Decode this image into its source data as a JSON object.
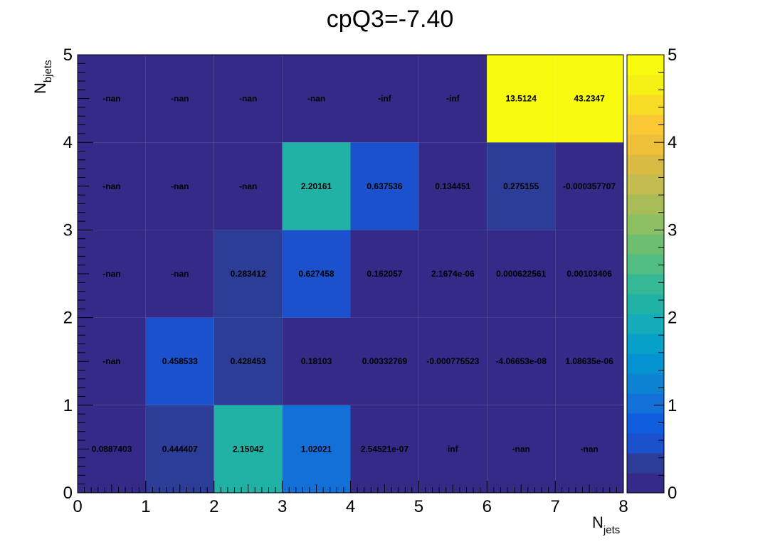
{
  "chart_data": {
    "type": "heatmap",
    "title": "cpQ3=-7.40",
    "xlabel": "N",
    "xlabel_sub": "jets",
    "ylabel": "N",
    "ylabel_sub": "bjets",
    "xlim": [
      0,
      8
    ],
    "ylim": [
      0,
      5
    ],
    "x_ticks": [
      "0",
      "1",
      "2",
      "3",
      "4",
      "5",
      "6",
      "7",
      "8"
    ],
    "y_ticks": [
      "0",
      "1",
      "2",
      "3",
      "4",
      "5"
    ],
    "colorbar_range": [
      0,
      5
    ],
    "colorbar_ticks": [
      "0",
      "1",
      "2",
      "3",
      "4",
      "5"
    ],
    "grid": false,
    "palette": [
      "#352a87",
      "#2c3d98",
      "#1b51cc",
      "#0f5cdd",
      "#1470d9",
      "#0d82d3",
      "#0592d1",
      "#07a1c8",
      "#14abba",
      "#21b2a6",
      "#34b896",
      "#51bd82",
      "#6ebe71",
      "#8dbf63",
      "#a8bd58",
      "#c3bb4f",
      "#d9ba42",
      "#eec039",
      "#fbc835",
      "#f6dc24",
      "#f4ef14",
      "#f9fb0e"
    ],
    "x_bins": [
      0,
      1,
      2,
      3,
      4,
      5,
      6,
      7
    ],
    "y_bins": [
      0,
      1,
      2,
      3,
      4
    ],
    "values": [
      [
        0.0887403,
        0.444407,
        2.15042,
        1.02021,
        2.54521e-07,
        null,
        null,
        null
      ],
      [
        null,
        0.458533,
        0.428453,
        0.18103,
        0.00332769,
        -0.000775523,
        -4.06653e-08,
        1.08635e-06
      ],
      [
        null,
        null,
        0.283412,
        0.627458,
        0.162057,
        2.1674e-06,
        0.000622561,
        0.00103406
      ],
      [
        null,
        null,
        null,
        2.20161,
        0.637536,
        0.134451,
        0.275155,
        -0.000357707
      ],
      [
        null,
        null,
        null,
        null,
        null,
        null,
        13.5124,
        43.2347
      ]
    ],
    "labels": [
      [
        "0.0887403",
        "0.444407",
        "2.15042",
        "1.02021",
        "2.54521e-07",
        "inf",
        "-nan",
        "-nan"
      ],
      [
        "-nan",
        "0.458533",
        "0.428453",
        "0.18103",
        "0.00332769",
        "-0.000775523",
        "-4.06653e-08",
        "1.08635e-06"
      ],
      [
        "-nan",
        "-nan",
        "0.283412",
        "0.627458",
        "0.162057",
        "2.1674e-06",
        "0.000622561",
        "0.00103406"
      ],
      [
        "-nan",
        "-nan",
        "-nan",
        "2.20161",
        "0.637536",
        "0.134451",
        "0.275155",
        "-0.000357707"
      ],
      [
        "-nan",
        "-nan",
        "-nan",
        "-nan",
        "-inf",
        "-inf",
        "13.5124",
        "43.2347"
      ]
    ]
  }
}
